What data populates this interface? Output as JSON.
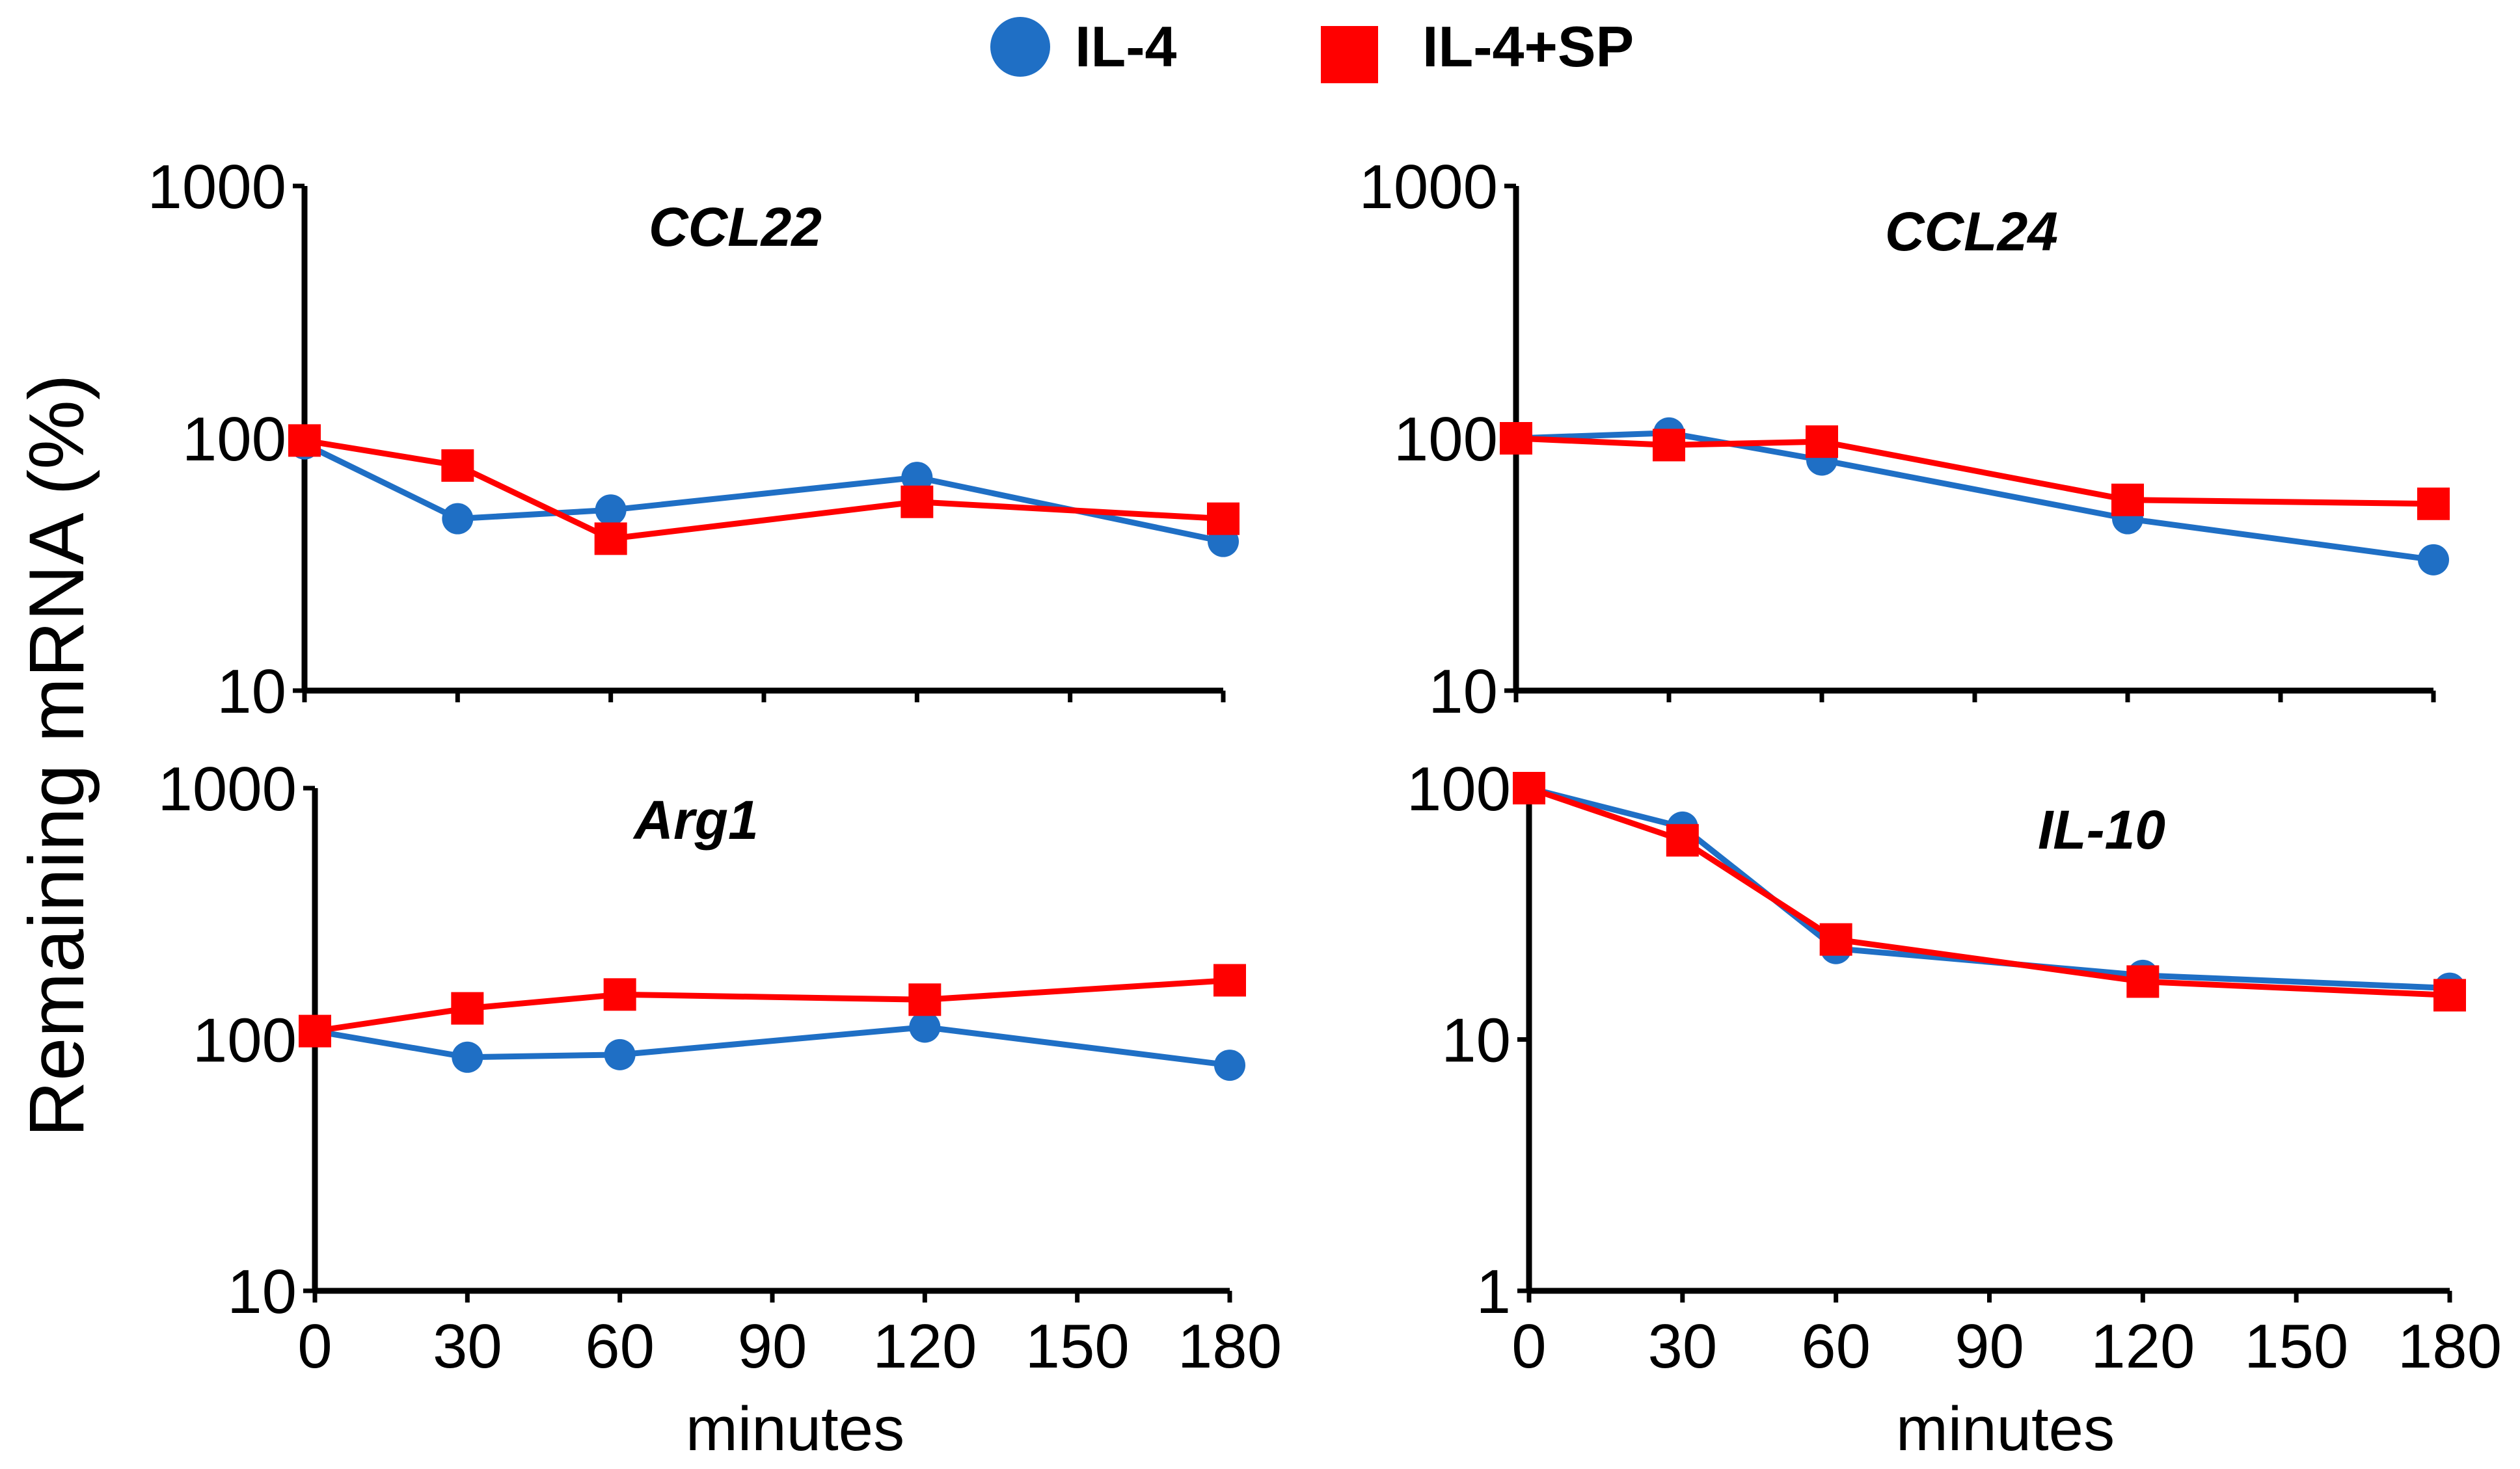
{
  "legend": [
    {
      "label": "IL-4",
      "marker": "circle",
      "color": "#1f6fc5"
    },
    {
      "label": "IL-4+SP",
      "marker": "square",
      "color": "#ff0000"
    }
  ],
  "ylabel": "Remaining mRNA (%)",
  "xlabel": "minutes",
  "chart_data": [
    {
      "type": "line",
      "title": "CCL22",
      "yscale": "log",
      "ylim": [
        10,
        1000
      ],
      "yticks": [
        "10",
        "100",
        "1000"
      ],
      "xlim": [
        0,
        180
      ],
      "xticks": [],
      "x": [
        0,
        30,
        60,
        120,
        180
      ],
      "series": [
        {
          "name": "IL-4",
          "values": [
            95,
            48,
            52,
            70,
            39
          ]
        },
        {
          "name": "IL-4+SP",
          "values": [
            98,
            78,
            40,
            56,
            48
          ]
        }
      ]
    },
    {
      "type": "line",
      "title": "CCL24",
      "yscale": "log",
      "ylim": [
        10,
        1000
      ],
      "yticks": [
        "10",
        "100",
        "1000"
      ],
      "xlim": [
        0,
        180
      ],
      "xticks": [],
      "x": [
        0,
        30,
        60,
        120,
        180
      ],
      "series": [
        {
          "name": "IL-4",
          "values": [
            100,
            105,
            82,
            48,
            33
          ]
        },
        {
          "name": "IL-4+SP",
          "values": [
            100,
            94,
            97,
            57,
            55
          ]
        }
      ]
    },
    {
      "type": "line",
      "title": "Arg1",
      "yscale": "log",
      "ylim": [
        10,
        1000
      ],
      "yticks": [
        "10",
        "100",
        "1000"
      ],
      "xlim": [
        0,
        180
      ],
      "xticks": [
        "0",
        "30",
        "60",
        "90",
        "120",
        "150",
        "180"
      ],
      "x": [
        0,
        30,
        60,
        120,
        180
      ],
      "series": [
        {
          "name": "IL-4",
          "values": [
            108,
            85,
            87,
            112,
            79
          ]
        },
        {
          "name": "IL-4+SP",
          "values": [
            108,
            133,
            151,
            144,
            172
          ]
        }
      ]
    },
    {
      "type": "line",
      "title": "IL-10",
      "yscale": "log",
      "ylim": [
        1,
        100
      ],
      "yticks": [
        "1",
        "10",
        "100"
      ],
      "xlim": [
        0,
        180
      ],
      "xticks": [
        "0",
        "30",
        "60",
        "90",
        "120",
        "150",
        "180"
      ],
      "x": [
        0,
        30,
        60,
        120,
        180
      ],
      "series": [
        {
          "name": "IL-4",
          "values": [
            100,
            70,
            23,
            18,
            16
          ]
        },
        {
          "name": "IL-4+SP",
          "values": [
            100,
            62,
            25,
            17,
            15
          ]
        }
      ]
    }
  ]
}
